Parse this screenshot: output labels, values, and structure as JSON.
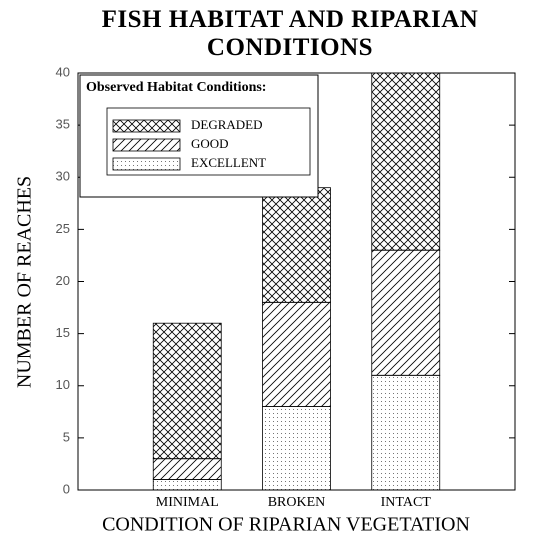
{
  "chart_data": {
    "type": "stacked_bar",
    "title": "FISH HABITAT AND RIPARIAN CONDITIONS",
    "xlabel": "CONDITION OF RIPARIAN VEGETATION",
    "ylabel": "NUMBER OF REACHES",
    "legend_title": "Observed Habitat Conditions:",
    "legend": "upper left",
    "categories": [
      "MINIMAL",
      "BROKEN",
      "INTACT"
    ],
    "series": [
      {
        "name": "DEGRADED",
        "color": "#000000",
        "pattern": "crosshatch",
        "values": [
          13,
          11,
          17
        ]
      },
      {
        "name": "GOOD",
        "color": "#000000",
        "pattern": "diagonal",
        "values": [
          2,
          10,
          12
        ]
      },
      {
        "name": "EXCELLENT",
        "color": "#000000",
        "pattern": "dots",
        "values": [
          1,
          8,
          11
        ]
      }
    ],
    "ylim": [
      0,
      40
    ],
    "yticks": [
      0,
      5,
      10,
      15,
      20,
      25,
      30,
      35,
      40
    ]
  }
}
